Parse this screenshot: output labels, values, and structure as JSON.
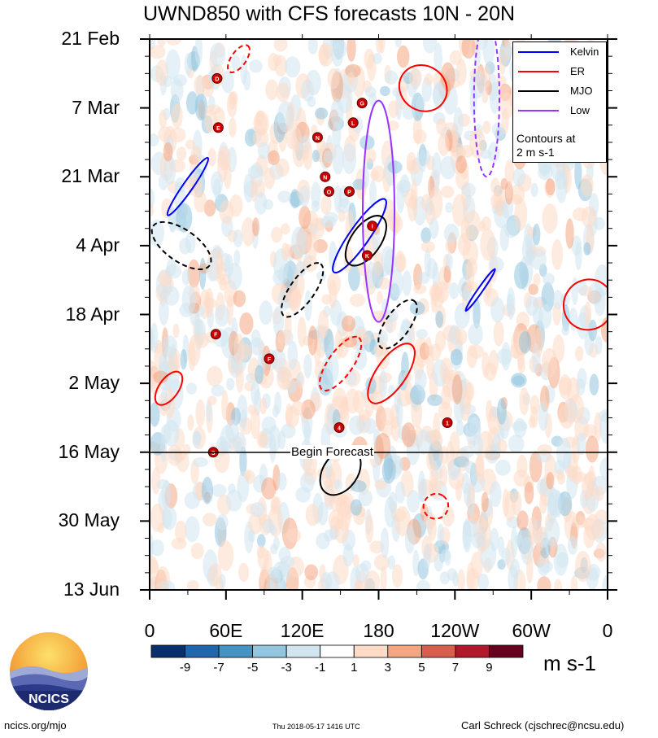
{
  "chart_data": {
    "type": "heatmap",
    "title": "UWND850 with CFS forecasts 10N - 20N",
    "x_ticks": [
      "0",
      "60E",
      "120E",
      "180",
      "120W",
      "60W",
      "0"
    ],
    "x_values": [
      0,
      60,
      120,
      180,
      240,
      300,
      360
    ],
    "y_ticks": [
      "21 Feb",
      "7 Mar",
      "21 Mar",
      "4 Apr",
      "18 Apr",
      "2 May",
      "16 May",
      "30 May",
      "13 Jun"
    ],
    "y_range": [
      "2018-02-21",
      "2018-06-13"
    ],
    "colorbar": {
      "labels": [
        "-9",
        "-7",
        "-5",
        "-3",
        "-1",
        "1",
        "3",
        "5",
        "7",
        "9"
      ],
      "colors": [
        "#08306b",
        "#2166ac",
        "#4393c3",
        "#92c5de",
        "#d1e5f0",
        "#ffffff",
        "#fddbc7",
        "#f4a582",
        "#d6604d",
        "#b2182b",
        "#67001f"
      ],
      "units": "m s-1"
    },
    "legend": {
      "items": [
        {
          "label": "Kelvin",
          "color": "#0000ff"
        },
        {
          "label": "ER",
          "color": "#ff0000"
        },
        {
          "label": "MJO",
          "color": "#000000"
        },
        {
          "label": "Low",
          "color": "#9933ff"
        }
      ],
      "note_line1": "Contours at",
      "note_line2": "2 m s-1",
      "placement": "top-right"
    },
    "annotation": "Begin Forecast",
    "forecast_start": "2018-05-16",
    "contours": [
      {
        "wave": "Kelvin",
        "sign": "pos",
        "lon": 165,
        "date": "2018-04-02",
        "lon_len": 70,
        "days": 4
      },
      {
        "wave": "Kelvin",
        "sign": "pos",
        "lon": 30,
        "date": "2018-03-23",
        "lon_len": 55,
        "days": 2
      },
      {
        "wave": "Kelvin",
        "sign": "pos",
        "lon": 260,
        "date": "2018-04-13",
        "lon_len": 40,
        "days": 1
      },
      {
        "wave": "MJO",
        "sign": "pos",
        "lon": 170,
        "date": "2018-04-03",
        "lon_len": 45,
        "days": 6
      },
      {
        "wave": "MJO",
        "sign": "pos",
        "lon": 150,
        "date": "2018-05-20",
        "lon_len": 40,
        "days": 7
      },
      {
        "wave": "MJO",
        "sign": "neg",
        "lon": 120,
        "date": "2018-04-13",
        "lon_len": 50,
        "days": 5
      },
      {
        "wave": "MJO",
        "sign": "neg",
        "lon": 195,
        "date": "2018-04-20",
        "lon_len": 45,
        "days": 5
      },
      {
        "wave": "MJO",
        "sign": "neg",
        "lon": 25,
        "date": "2018-04-04",
        "lon_len": 25,
        "days": 14
      },
      {
        "wave": "ER",
        "sign": "pos",
        "lon": 190,
        "date": "2018-04-30",
        "lon_len": 55,
        "days": 6
      },
      {
        "wave": "ER",
        "sign": "pos",
        "lon": 215,
        "date": "2018-03-03",
        "lon_len": 35,
        "days": 10
      },
      {
        "wave": "ER",
        "sign": "pos",
        "lon": 345,
        "date": "2018-04-16",
        "lon_len": 40,
        "days": 10
      },
      {
        "wave": "ER",
        "sign": "pos",
        "lon": 15,
        "date": "2018-05-03",
        "lon_len": 30,
        "days": 4
      },
      {
        "wave": "ER",
        "sign": "neg",
        "lon": 150,
        "date": "2018-04-28",
        "lon_len": 50,
        "days": 5
      },
      {
        "wave": "ER",
        "sign": "neg",
        "lon": 225,
        "date": "2018-05-27",
        "lon_len": 20,
        "days": 5
      },
      {
        "wave": "ER",
        "sign": "neg",
        "lon": 70,
        "date": "2018-02-25",
        "lon_len": 25,
        "days": 3
      },
      {
        "wave": "Low",
        "sign": "pos",
        "lon": 180,
        "date": "2018-03-28",
        "lon_len": 25,
        "days": 45
      },
      {
        "wave": "Low",
        "sign": "neg",
        "lon": 265,
        "date": "2018-03-05",
        "lon_len": 20,
        "days": 32
      }
    ],
    "storms": [
      {
        "lon": 53,
        "date": "2018-03-01",
        "letter": "D"
      },
      {
        "lon": 54,
        "date": "2018-03-11",
        "letter": "E"
      },
      {
        "lon": 167,
        "date": "2018-03-06",
        "letter": "G"
      },
      {
        "lon": 160,
        "date": "2018-03-10",
        "letter": "L"
      },
      {
        "lon": 132,
        "date": "2018-03-13",
        "letter": "N"
      },
      {
        "lon": 138,
        "date": "2018-03-21",
        "letter": "N"
      },
      {
        "lon": 141,
        "date": "2018-03-24",
        "letter": "O"
      },
      {
        "lon": 157,
        "date": "2018-03-24",
        "letter": "P"
      },
      {
        "lon": 175,
        "date": "2018-03-31",
        "letter": "I"
      },
      {
        "lon": 171,
        "date": "2018-04-06",
        "letter": "K"
      },
      {
        "lon": 52,
        "date": "2018-04-22",
        "letter": "F"
      },
      {
        "lon": 94,
        "date": "2018-04-27",
        "letter": "F"
      },
      {
        "lon": 149,
        "date": "2018-05-11",
        "letter": "4"
      },
      {
        "lon": 234,
        "date": "2018-05-10",
        "letter": "1"
      },
      {
        "lon": 50,
        "date": "2018-05-16",
        "letter": "S"
      }
    ]
  },
  "logo": {
    "text": "NCICS"
  },
  "footer": {
    "left": "ncics.org/mjo",
    "middle": "Thu 2018-05-17 1416 UTC",
    "right": "Carl Schreck (cjschrec@ncsu.edu)"
  }
}
